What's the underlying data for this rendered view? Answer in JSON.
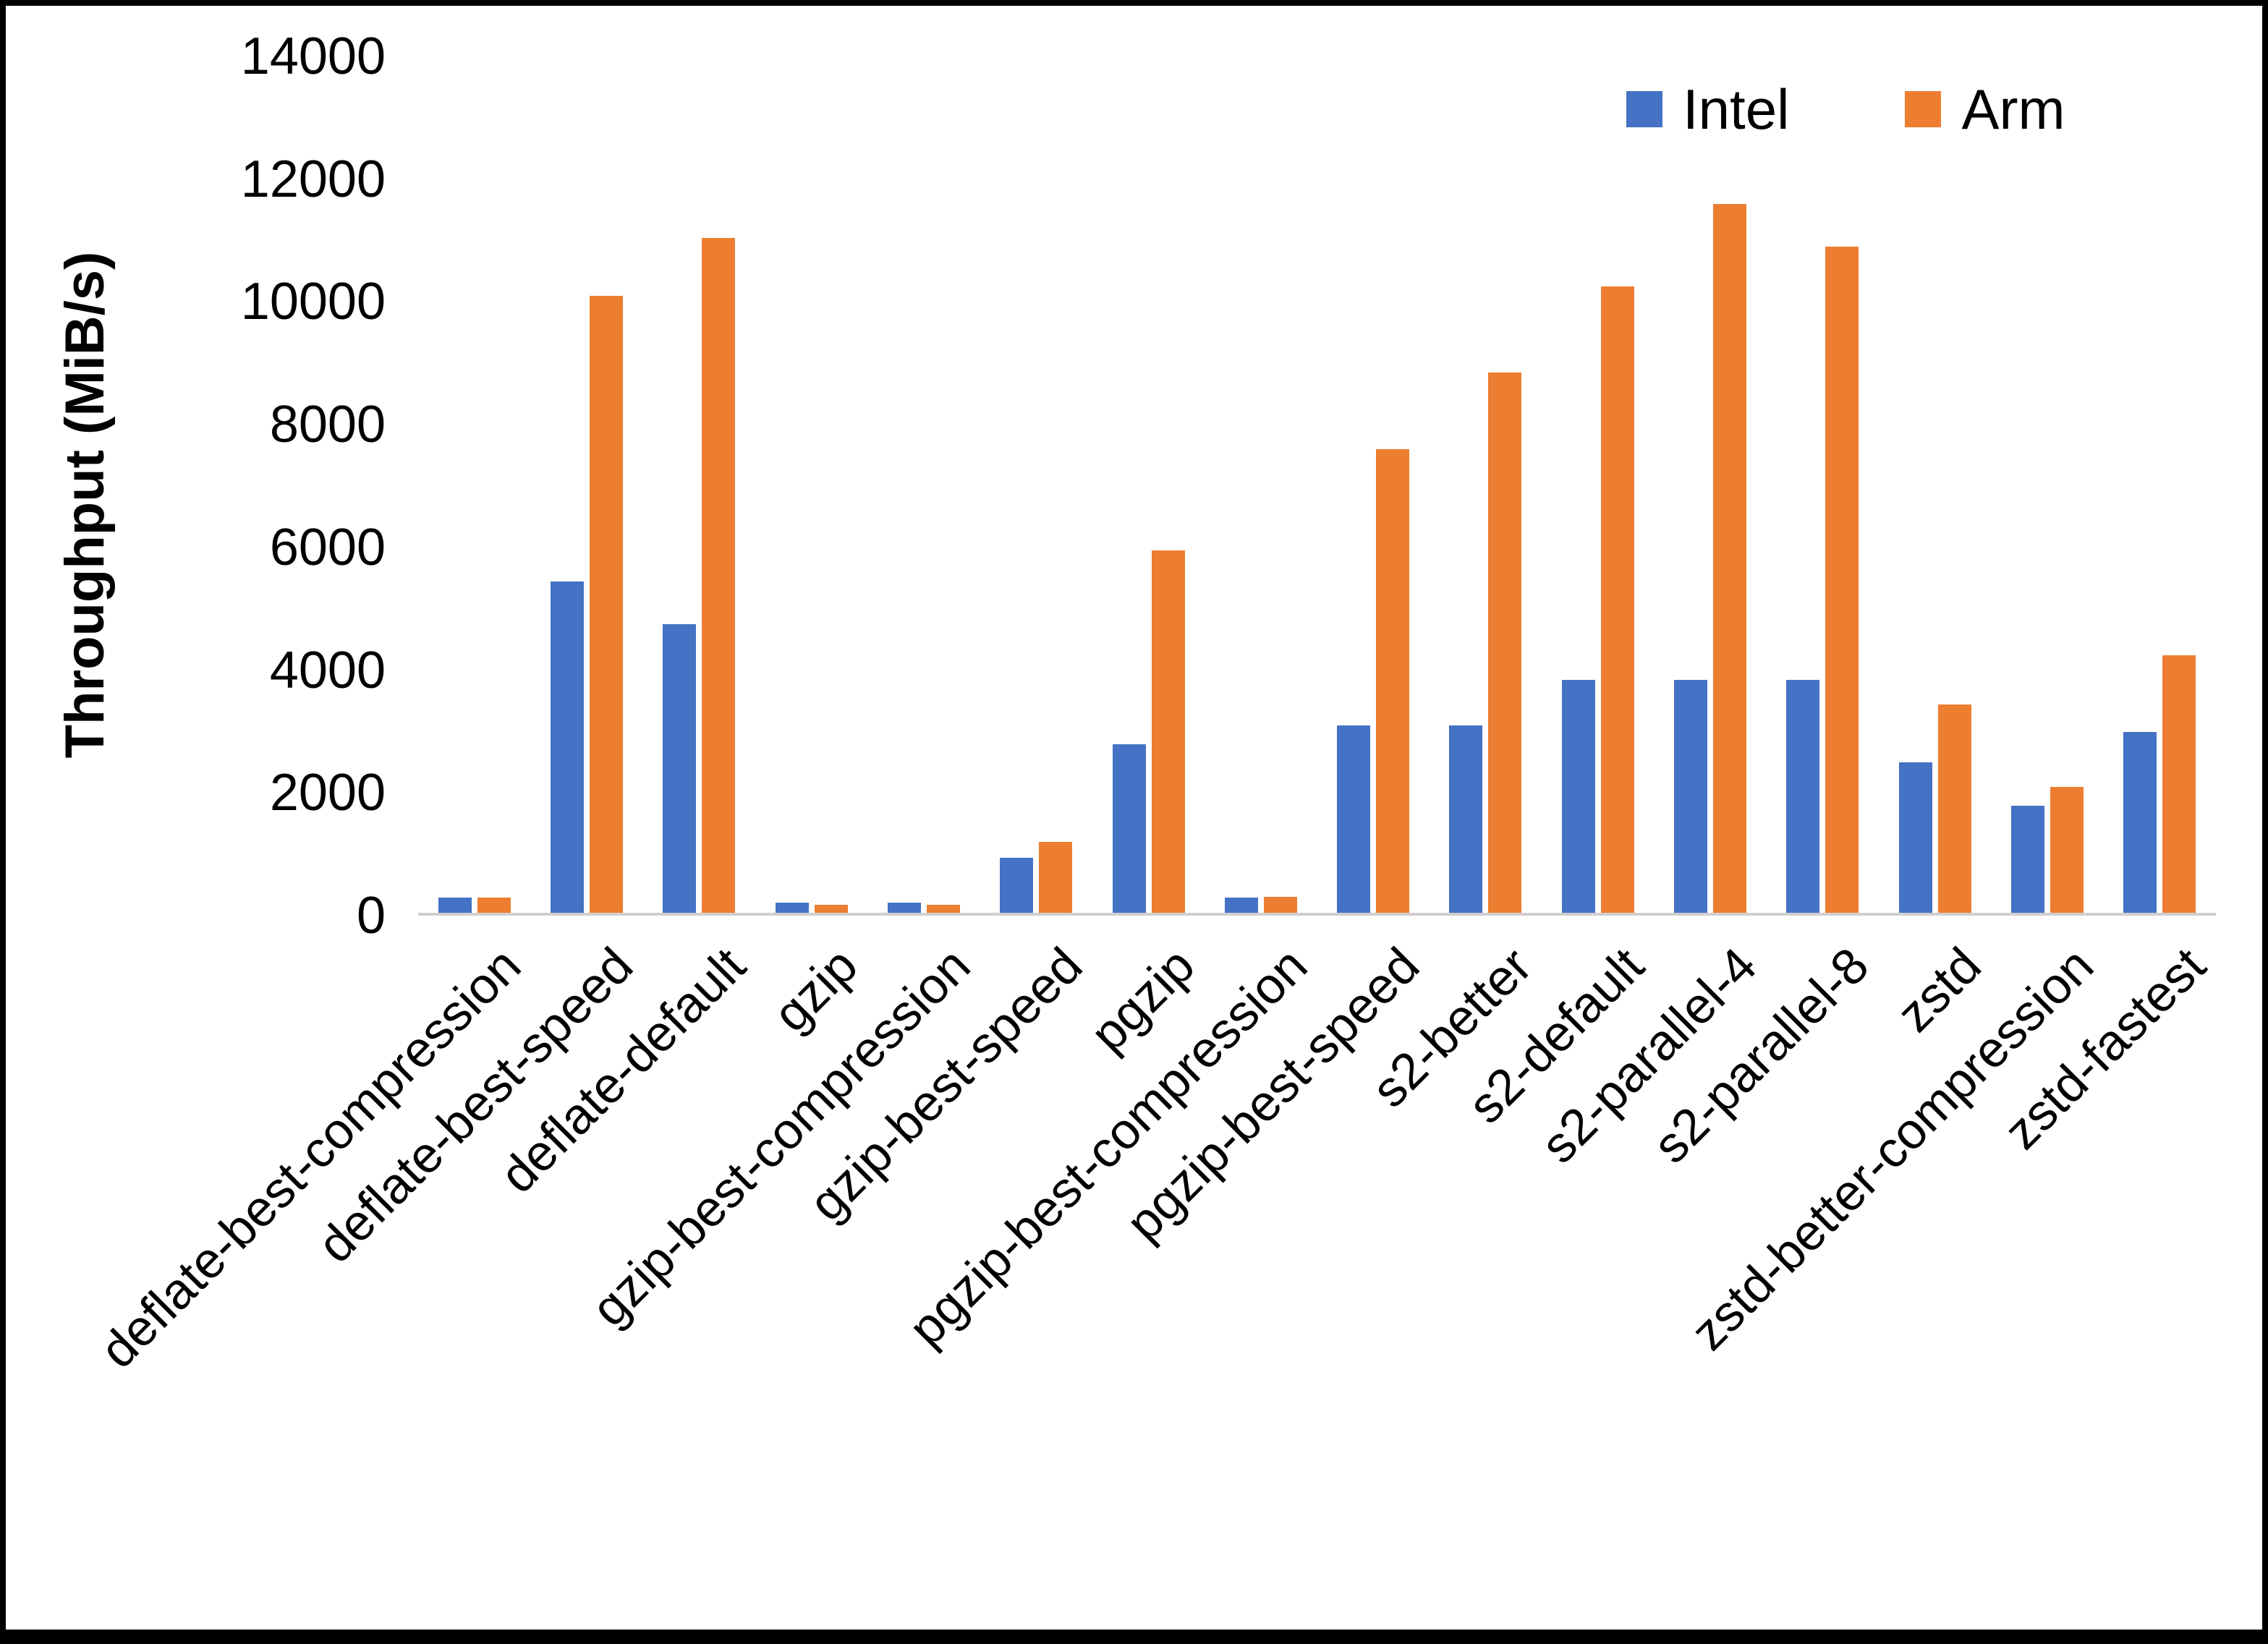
{
  "chart_data": {
    "type": "bar",
    "title": "",
    "xlabel": "",
    "ylabel": "Throughput (MiB/s)",
    "ylim": [
      0,
      14000
    ],
    "yticks": [
      0,
      2000,
      4000,
      6000,
      8000,
      10000,
      12000,
      14000
    ],
    "grid": false,
    "legend_position": "top-right",
    "categories": [
      "deflate-best-compression",
      "deflate-best-speed",
      "deflate-default",
      "gzip",
      "gzip-best-compression",
      "gzip-best-speed",
      "pgzip",
      "pgzip-best-compression",
      "pgzip-best-speed",
      "s2-better",
      "s2-default",
      "s2-parallel-4",
      "s2-parallel-8",
      "zstd",
      "zstd-better-compression",
      "zstd-fastest"
    ],
    "series": [
      {
        "name": "Intel",
        "color": "#4472C4",
        "values": [
          250,
          5400,
          4700,
          160,
          160,
          900,
          2750,
          250,
          3050,
          3050,
          3800,
          3800,
          3800,
          2450,
          1750,
          2950
        ]
      },
      {
        "name": "Arm",
        "color": "#ED7D31",
        "values": [
          250,
          10050,
          11000,
          130,
          130,
          1150,
          5900,
          260,
          7550,
          8800,
          10200,
          11550,
          10850,
          3400,
          2050,
          4200
        ]
      }
    ]
  }
}
